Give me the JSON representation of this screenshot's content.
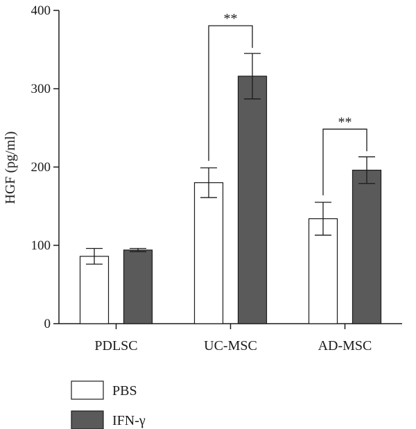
{
  "chart_data": {
    "type": "bar",
    "title": "",
    "xlabel": "",
    "ylabel": "HGF (pg/ml)",
    "ylim": [
      0,
      400
    ],
    "yticks": [
      0,
      100,
      200,
      300,
      400
    ],
    "grid": false,
    "legend_placement": "bottom-left",
    "categories": [
      "PDLSC",
      "UC-MSC",
      "AD-MSC"
    ],
    "series": [
      {
        "name": "PBS",
        "color": "#ffffff",
        "values": [
          86,
          180,
          134
        ],
        "errors": [
          10,
          19,
          21
        ]
      },
      {
        "name": "IFN-γ",
        "color": "#5a5a5a",
        "values": [
          94,
          316,
          196
        ],
        "errors": [
          2,
          29,
          17
        ]
      }
    ],
    "significance": [
      {
        "category": "UC-MSC",
        "label": "**"
      },
      {
        "category": "AD-MSC",
        "label": "**"
      }
    ]
  }
}
